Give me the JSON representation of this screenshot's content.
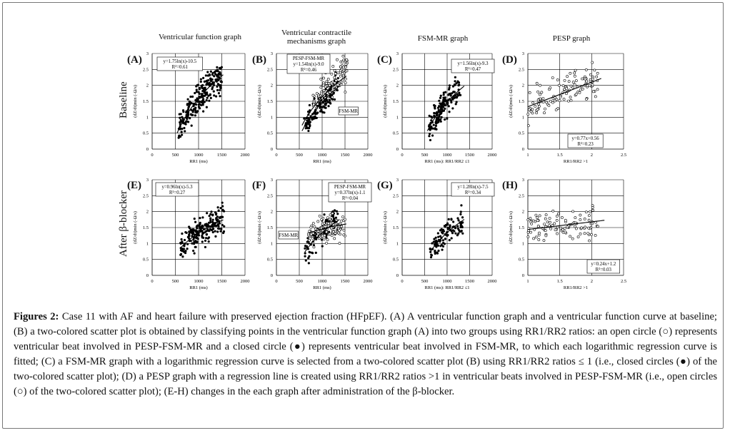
{
  "column_titles": [
    "Ventricular function graph",
    "Ventricular contractile mechanisms graph",
    "FSM-MR graph",
    "PESP graph"
  ],
  "row_labels": [
    "Baseline",
    "After β-blocker"
  ],
  "caption": {
    "bold": "Figures 2:",
    "text": "Case 11 with AF and heart failure with preserved ejection fraction (HFpEF). (A) A ventricular function graph and a ventricular function curve at baseline; (B) a two-colored scatter plot is obtained by classifying points in the ventricular function graph (A) into two groups using RR1/RR2 ratios: an open circle (○) represents ventricular beat involved in PESP-FSM-MR and a closed circle (●) represents ventricular beat involved in FSM-MR, to which each logarithmic regression curve is fitted; (C) a FSM-MR graph with a logarithmic regression curve is selected from a two-colored scatter plot (B) using RR1/RR2 ratios ≤ 1 (i.e., closed circles (●) of the two-colored scatter plot); (D) a PESP graph with a regression line is created using RR1/RR2 ratios >1 in ventricular beats involved in PESP-FSM-MR (i.e., open circles (○) of the two-colored scatter plot); (E-H) changes in the each graph after administration of the β-blocker."
  },
  "chart_data": [
    {
      "panel": "(A)",
      "type": "scatter",
      "xlabel": "RR1 (ms)",
      "ylabel": "(dZ/dt)min (-Ω/s)",
      "xlim": [
        0,
        2000
      ],
      "ylim": [
        0,
        3
      ],
      "xticks": [
        "0",
        "500",
        "1000",
        "1500",
        "2000"
      ],
      "yticks": [
        "0",
        "0.5",
        "1",
        "1.5",
        "2",
        "2.5",
        "3"
      ],
      "regression": {
        "kind": "log",
        "a": 1.75,
        "b": -10.5,
        "x": [
          540,
          1530
        ]
      },
      "annotations": [
        {
          "text": "y=1.75ln(x)-10.5"
        },
        {
          "text": "R²=0.61"
        }
      ],
      "cloud": {
        "x": [
          550,
          1500
        ],
        "curve": "log",
        "a": 1.75,
        "b": -10.5,
        "spread": 0.33,
        "n": 240,
        "open": false
      }
    },
    {
      "panel": "(B)",
      "type": "scatter",
      "xlabel": "RR1 (ms)",
      "ylabel": "(dZ/dt)min (-Ω/s)",
      "xlim": [
        0,
        2000
      ],
      "ylim": [
        0,
        3
      ],
      "xticks": [
        "0",
        "500",
        "1000",
        "1500",
        "2000"
      ],
      "yticks": [
        "0",
        "0.5",
        "1",
        "1.5",
        "2",
        "2.5",
        "3"
      ],
      "regression": {
        "kind": "log",
        "a": 1.54,
        "b": -9.0,
        "x": [
          560,
          1530
        ]
      },
      "regression2": {
        "kind": "log",
        "a": 1.56,
        "b": -9.3,
        "x": [
          560,
          1380
        ]
      },
      "annotations": [
        {
          "text": "PESP-FSM-MR"
        },
        {
          "text": "y=1.54ln(x)-9.0"
        },
        {
          "text": "R²=0.46"
        },
        {
          "text": "FSM-MR"
        }
      ],
      "cloud": {
        "x": [
          600,
          1350
        ],
        "curve": "log",
        "a": 1.56,
        "b": -9.3,
        "spread": 0.3,
        "n": 150,
        "open": false
      },
      "cloud2": {
        "x": [
          800,
          1550
        ],
        "curve": "log",
        "a": 1.54,
        "b": -8.85,
        "spread": 0.35,
        "n": 110,
        "open": true
      }
    },
    {
      "panel": "(C)",
      "type": "scatter",
      "xlabel": "RR1 (ms): RR1/RR2 ≤1",
      "ylabel": "(dZ/dt)min (-Ω/s)",
      "xlim": [
        0,
        2000
      ],
      "ylim": [
        0,
        3
      ],
      "xticks": [
        "0",
        "500",
        "1000",
        "1500",
        "2000"
      ],
      "yticks": [
        "0",
        "0.5",
        "1",
        "1.5",
        "2",
        "2.5",
        "3"
      ],
      "regression": {
        "kind": "log",
        "a": 1.56,
        "b": -9.3,
        "x": [
          560,
          1380
        ]
      },
      "annotations": [
        {
          "text": "y=1.56ln(x)-9.3"
        },
        {
          "text": "R²=0.47"
        }
      ],
      "cloud": {
        "x": [
          580,
          1300
        ],
        "curve": "log",
        "a": 1.56,
        "b": -9.3,
        "spread": 0.3,
        "n": 150,
        "open": false
      }
    },
    {
      "panel": "(D)",
      "type": "scatter",
      "xlabel": "RR1/RR2 >1",
      "ylabel": "(dZ/dt)min (-Ω/s)",
      "xlim": [
        1,
        2.5
      ],
      "ylim": [
        0,
        3
      ],
      "xticks": [
        "1",
        "1.5",
        "2",
        "2.5"
      ],
      "yticks": [
        "0",
        "0.5",
        "1",
        "1.5",
        "2",
        "2.5",
        "3"
      ],
      "regression": {
        "kind": "linear",
        "a": 0.77,
        "b": 0.56,
        "x": [
          1.0,
          2.15
        ]
      },
      "annotations": [
        {
          "text": "y=0.77x+0.56"
        },
        {
          "text": "R²=0.23"
        }
      ],
      "cloud": {
        "x": [
          1.0,
          2.1
        ],
        "curve": "linear",
        "a": 0.77,
        "b": 0.56,
        "spread": 0.35,
        "n": 120,
        "open": true
      }
    },
    {
      "panel": "(E)",
      "type": "scatter",
      "xlabel": "RR1 (ms)",
      "ylabel": "(dZ/dt)min (-Ω/s)",
      "xlim": [
        0,
        2000
      ],
      "ylim": [
        0,
        3
      ],
      "xticks": [
        "0",
        "500",
        "1000",
        "1500",
        "2000"
      ],
      "yticks": [
        "0",
        "0.5",
        "1",
        "1.5",
        "2",
        "2.5",
        "3"
      ],
      "regression": {
        "kind": "log",
        "a": 0.96,
        "b": -5.3,
        "x": [
          600,
          1530
        ]
      },
      "annotations": [
        {
          "text": "y=0.96ln(x)-5.3"
        },
        {
          "text": "R²=0.27"
        }
      ],
      "cloud": {
        "x": [
          600,
          1550
        ],
        "curve": "log",
        "a": 0.96,
        "b": -5.3,
        "spread": 0.3,
        "n": 200,
        "open": false
      }
    },
    {
      "panel": "(F)",
      "type": "scatter",
      "xlabel": "RR1 (ms)",
      "ylabel": "(dZ/dt)min (-Ω/s)",
      "xlim": [
        0,
        2000
      ],
      "ylim": [
        0,
        3
      ],
      "xticks": [
        "0",
        "500",
        "1000",
        "1500",
        "2000"
      ],
      "yticks": [
        "0",
        "0.5",
        "1",
        "1.5",
        "2",
        "2.5",
        "3"
      ],
      "regression": {
        "kind": "log",
        "a": 0.37,
        "b": -1.1,
        "x": [
          700,
          1530
        ]
      },
      "regression2": {
        "kind": "log",
        "a": 1.28,
        "b": -7.5,
        "x": [
          620,
          1380
        ]
      },
      "annotations": [
        {
          "text": "PESP-FSM-MR"
        },
        {
          "text": "y=0.37ln(x)-1.1"
        },
        {
          "text": "R²=0.04"
        },
        {
          "text": "FSM-MR"
        }
      ],
      "cloud": {
        "x": [
          620,
          1350
        ],
        "curve": "log",
        "a": 1.28,
        "b": -7.5,
        "spread": 0.3,
        "n": 110,
        "open": false
      },
      "cloud2": {
        "x": [
          700,
          1550
        ],
        "curve": "log",
        "a": 0.37,
        "b": -1.1,
        "spread": 0.3,
        "n": 110,
        "open": true
      }
    },
    {
      "panel": "(G)",
      "type": "scatter",
      "xlabel": "RR1 (ms): RR1/RR2 ≤1",
      "ylabel": "(dZ/dt)min (-Ω/s)",
      "xlim": [
        0,
        2000
      ],
      "ylim": [
        0,
        3
      ],
      "xticks": [
        "0",
        "500",
        "1000",
        "1500",
        "2000"
      ],
      "yticks": [
        "0",
        "0.5",
        "1",
        "1.5",
        "2",
        "2.5",
        "3"
      ],
      "regression": {
        "kind": "log",
        "a": 1.28,
        "b": -7.5,
        "x": [
          620,
          1380
        ]
      },
      "annotations": [
        {
          "text": "y=1.28ln(x)-7.5"
        },
        {
          "text": "R²=0.34"
        }
      ],
      "cloud": {
        "x": [
          620,
          1350
        ],
        "curve": "log",
        "a": 1.28,
        "b": -7.5,
        "spread": 0.3,
        "n": 110,
        "open": false
      }
    },
    {
      "panel": "(H)",
      "type": "scatter",
      "xlabel": "RR1/RR2 >1",
      "ylabel": "(dZ/dt)min (-Ω/s)",
      "xlim": [
        1,
        2.5
      ],
      "ylim": [
        0,
        3
      ],
      "xticks": [
        "1",
        "1.5",
        "2",
        "2.5"
      ],
      "yticks": [
        "0",
        "0.5",
        "1",
        "1.5",
        "2",
        "2.5",
        "3"
      ],
      "regression": {
        "kind": "linear",
        "a": 0.24,
        "b": 1.2,
        "x": [
          1.0,
          2.2
        ]
      },
      "annotations": [
        {
          "text": "y=0.24x+1.2"
        },
        {
          "text": "R²=0.03"
        }
      ],
      "cloud": {
        "x": [
          1.0,
          2.1
        ],
        "curve": "linear",
        "a": 0.24,
        "b": 1.2,
        "spread": 0.3,
        "n": 110,
        "open": true
      }
    }
  ]
}
